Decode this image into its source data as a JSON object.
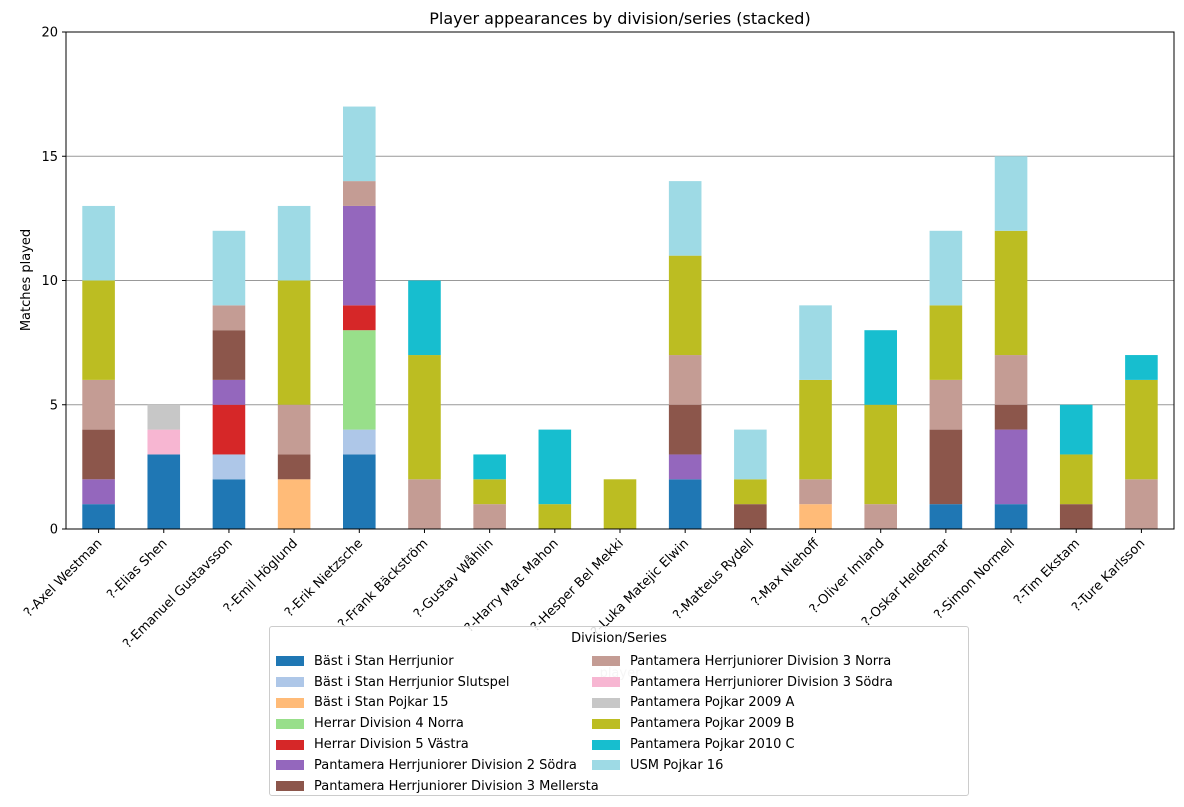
{
  "chart_data": {
    "type": "bar",
    "stacked": true,
    "title": "Player appearances by division/series (stacked)",
    "xlabel": "player",
    "ylabel": "Matches played",
    "ylim": [
      0,
      20
    ],
    "yticks": [
      0,
      5,
      10,
      15,
      20
    ],
    "grid": "horizontal",
    "legend_title": "Division/Series",
    "legend_placement": "bottom-center",
    "categories": [
      "?-Axel Westman",
      "?-Elias Shen",
      "?-Emanuel Gustavsson",
      "?-Emil Höglund",
      "?-Erik Nietzsche",
      "?-Frank Bäckström",
      "?-Gustav Wåhlin",
      "?-Harry Mac Mahon",
      "?-Hesper Bel Mekki",
      "?-Luka Matejic Elwin",
      "?-Matteus Rydell",
      "?-Max Niehoff",
      "?-Oliver Imland",
      "?-Oskar Heldemar",
      "?-Simon Normell",
      "?-Tim Ekstam",
      "?-Ture Karlsson"
    ],
    "series": [
      {
        "name": "Bäst i Stan Herrjunior",
        "color": "#1f77b4",
        "values": [
          1,
          3,
          2,
          0,
          3,
          0,
          0,
          0,
          0,
          2,
          0,
          0,
          0,
          1,
          1,
          0,
          0
        ]
      },
      {
        "name": "Bäst i Stan Herrjunior Slutspel",
        "color": "#aec7e8",
        "values": [
          0,
          0,
          1,
          0,
          1,
          0,
          0,
          0,
          0,
          0,
          0,
          0,
          0,
          0,
          0,
          0,
          0
        ]
      },
      {
        "name": "Bäst i Stan Pojkar 15",
        "color": "#ffbb78",
        "values": [
          0,
          0,
          0,
          2,
          0,
          0,
          0,
          0,
          0,
          0,
          0,
          1,
          0,
          0,
          0,
          0,
          0
        ]
      },
      {
        "name": "Herrar Division 4 Norra",
        "color": "#98df8a",
        "values": [
          0,
          0,
          0,
          0,
          4,
          0,
          0,
          0,
          0,
          0,
          0,
          0,
          0,
          0,
          0,
          0,
          0
        ]
      },
      {
        "name": "Herrar Division 5 Västra",
        "color": "#d62728",
        "values": [
          0,
          0,
          2,
          0,
          1,
          0,
          0,
          0,
          0,
          0,
          0,
          0,
          0,
          0,
          0,
          0,
          0
        ]
      },
      {
        "name": "Pantamera Herrjuniorer Division 2 Södra",
        "color": "#9467bd",
        "values": [
          1,
          0,
          1,
          0,
          4,
          0,
          0,
          0,
          0,
          1,
          0,
          0,
          0,
          0,
          3,
          0,
          0
        ]
      },
      {
        "name": "Pantamera Herrjuniorer Division 3 Mellersta",
        "color": "#8c564b",
        "values": [
          2,
          0,
          2,
          1,
          0,
          0,
          0,
          0,
          0,
          2,
          1,
          0,
          0,
          3,
          1,
          1,
          0
        ]
      },
      {
        "name": "Pantamera Herrjuniorer Division 3 Norra",
        "color": "#c49c94",
        "values": [
          2,
          0,
          1,
          2,
          1,
          2,
          1,
          0,
          0,
          2,
          0,
          1,
          1,
          2,
          2,
          0,
          2
        ]
      },
      {
        "name": "Pantamera Herrjuniorer Division 3 Södra",
        "color": "#f7b6d2",
        "values": [
          0,
          1,
          0,
          0,
          0,
          0,
          0,
          0,
          0,
          0,
          0,
          0,
          0,
          0,
          0,
          0,
          0
        ]
      },
      {
        "name": "Pantamera Pojkar 2009 A",
        "color": "#c7c7c7",
        "values": [
          0,
          1,
          0,
          0,
          0,
          0,
          0,
          0,
          0,
          0,
          0,
          0,
          0,
          0,
          0,
          0,
          0
        ]
      },
      {
        "name": "Pantamera Pojkar 2009 B",
        "color": "#bcbd22",
        "values": [
          4,
          0,
          0,
          5,
          0,
          5,
          1,
          1,
          2,
          4,
          1,
          4,
          4,
          3,
          5,
          2,
          4
        ]
      },
      {
        "name": "Pantamera Pojkar 2010 C",
        "color": "#17becf",
        "values": [
          0,
          0,
          0,
          0,
          0,
          3,
          1,
          3,
          0,
          0,
          0,
          0,
          3,
          0,
          0,
          2,
          1
        ]
      },
      {
        "name": "USM Pojkar 16",
        "color": "#9edae5",
        "values": [
          3,
          0,
          3,
          3,
          3,
          0,
          0,
          0,
          0,
          3,
          2,
          3,
          0,
          3,
          3,
          0,
          0
        ]
      }
    ]
  }
}
